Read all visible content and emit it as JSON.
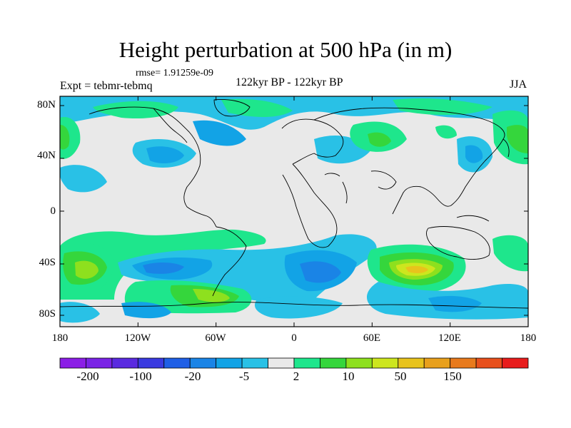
{
  "title": "Height perturbation at 500 hPa (in m)",
  "rmse_label": "rmse= 1.91259e-09",
  "experiment_label": "Expt = tebmr-tebmq",
  "period_label": "122kyr BP - 122kyr BP",
  "season_label": "JJA",
  "lat_ticks": [
    "80N",
    "40N",
    "0",
    "40S",
    "80S"
  ],
  "lon_ticks": [
    "180",
    "120W",
    "60W",
    "0",
    "60E",
    "120E",
    "180"
  ],
  "colorbar": {
    "labels": [
      "-200",
      "-100",
      "-20",
      "-5",
      "2",
      "10",
      "50",
      "150"
    ],
    "colors": [
      "#8b1ee6",
      "#7a23e6",
      "#5a2ae0",
      "#3a3ae0",
      "#1f5fe6",
      "#1a84e6",
      "#12a3e6",
      "#29c1e6",
      "#e9e9e9",
      "#1ee68c",
      "#35d63c",
      "#8ee01e",
      "#cde61e",
      "#e8c31c",
      "#e8a01c",
      "#e87a1c",
      "#e8501c",
      "#e81c1c"
    ]
  },
  "map_colors": {
    "ocean": "#e9e9e9",
    "neg_light": "#29c1e6",
    "neg_med": "#12a3e6",
    "neg_dark": "#1a84e6",
    "pos_light": "#1ee68c",
    "pos_med": "#35d63c",
    "pos_strong": "#8ee01e",
    "pos_yellow": "#cde61e",
    "pos_orange": "#e8c31c",
    "coast": "#000000"
  }
}
